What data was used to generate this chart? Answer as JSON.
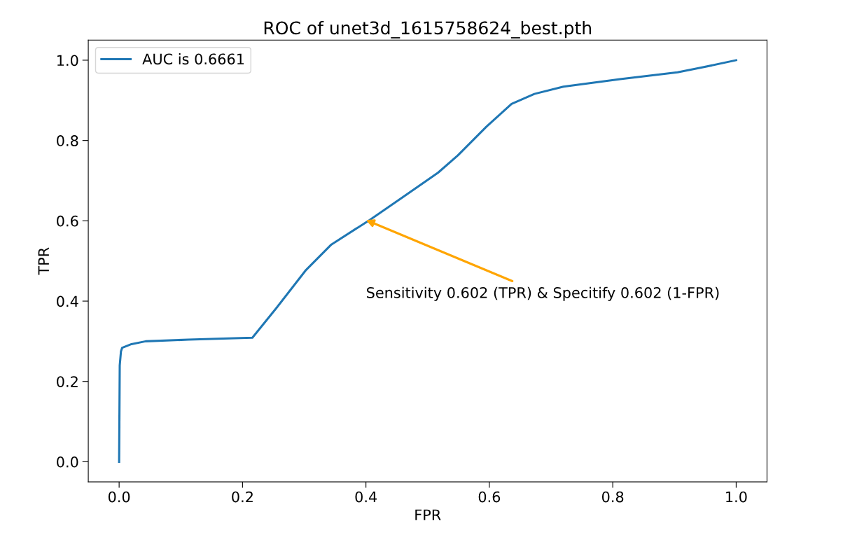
{
  "chart_data": {
    "type": "line",
    "title": "ROC of unet3d_1615758624_best.pth",
    "xlabel": "FPR",
    "ylabel": "TPR",
    "series": [
      {
        "name": "AUC is 0.6661",
        "color": "#1f77b4",
        "x": [
          0,
          0.001,
          0.003,
          0.005,
          0.02,
          0.043,
          0.112,
          0.216,
          0.255,
          0.302,
          0.344,
          0.406,
          0.459,
          0.517,
          0.549,
          0.595,
          0.636,
          0.673,
          0.72,
          0.812,
          0.905,
          0.942,
          1.0
        ],
        "values": [
          0,
          0.24,
          0.275,
          0.284,
          0.293,
          0.3,
          0.304,
          0.309,
          0.383,
          0.476,
          0.541,
          0.602,
          0.658,
          0.72,
          0.763,
          0.834,
          0.891,
          0.916,
          0.934,
          0.953,
          0.97,
          0.981,
          1.0
        ]
      }
    ],
    "annotations": [
      {
        "text": "Sensitivity 0.602 (TPR) & Specitify 0.602 (1-FPR)",
        "x": 0.4,
        "y": 0.602
      }
    ],
    "xlim": [
      -0.05,
      1.05
    ],
    "ylim": [
      -0.05,
      1.05
    ],
    "xticks": [
      {
        "value": 0,
        "label": "0.0"
      },
      {
        "value": 0.2,
        "label": "0.2"
      },
      {
        "value": 0.4,
        "label": "0.4"
      },
      {
        "value": 0.6,
        "label": "0.6"
      },
      {
        "value": 0.8,
        "label": "0.8"
      },
      {
        "value": 1,
        "label": "1.0"
      }
    ],
    "yticks": [
      {
        "value": 0,
        "label": "0.0"
      },
      {
        "value": 0.2,
        "label": "0.2"
      },
      {
        "value": 0.4,
        "label": "0.4"
      },
      {
        "value": 0.6,
        "label": "0.6"
      },
      {
        "value": 0.8,
        "label": "0.8"
      },
      {
        "value": 1,
        "label": "1.0"
      }
    ],
    "legend": "top left",
    "grid": false
  }
}
